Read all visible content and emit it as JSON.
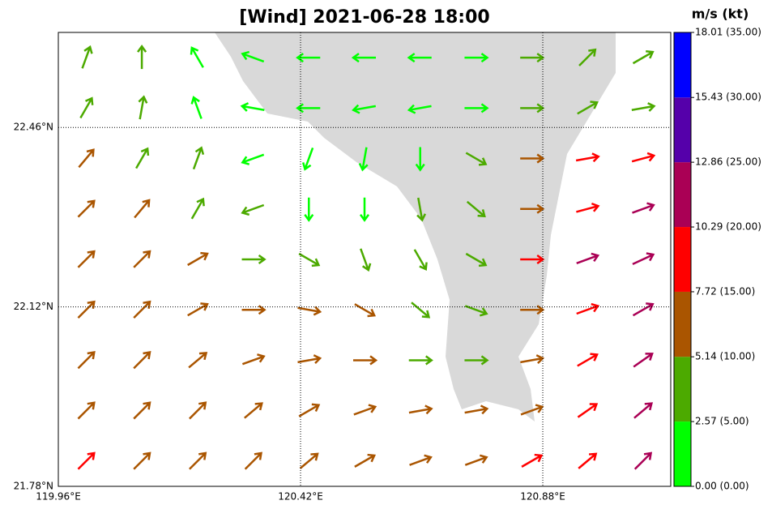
{
  "title": "[Wind] 2021-06-28 18:00",
  "xlim": [
    119.96,
    121.123
  ],
  "ylim": [
    21.78,
    22.64
  ],
  "xticks": [
    {
      "value": 119.96,
      "label": "119.96°E"
    },
    {
      "value": 120.42,
      "label": "120.42°E"
    },
    {
      "value": 120.88,
      "label": "120.88°E"
    }
  ],
  "yticks": [
    {
      "value": 21.78,
      "label": "21.78°N"
    },
    {
      "value": 22.12,
      "label": "22.12°N"
    },
    {
      "value": 22.46,
      "label": "22.46°N"
    }
  ],
  "colorbar": {
    "title": "m/s (kt)",
    "lim": [
      0,
      18.01
    ],
    "ticks": [
      {
        "value": 0,
        "label": "0.00  (0.00)"
      },
      {
        "value": 2.57,
        "label": "2.57  (5.00)"
      },
      {
        "value": 5.14,
        "label": "5.14  (10.00)"
      },
      {
        "value": 7.72,
        "label": "7.72  (15.00)"
      },
      {
        "value": 10.29,
        "label": "10.29  (20.00)"
      },
      {
        "value": 12.86,
        "label": "12.86  (25.00)"
      },
      {
        "value": 15.43,
        "label": "15.43  (30.00)"
      },
      {
        "value": 18.01,
        "label": "18.01  (35.00)"
      }
    ],
    "colors": [
      "#00ff00",
      "#4caa00",
      "#aa5500",
      "#ff0000",
      "#aa0055",
      "#5500aa",
      "#0000ff"
    ]
  },
  "wind": {
    "speed": [
      [
        3.5,
        3.5,
        2.5,
        2,
        1.5,
        1.5,
        1.5,
        2,
        4,
        3,
        3
      ],
      [
        4,
        3.5,
        2,
        1.5,
        1.5,
        1.5,
        1.5,
        2.5,
        4,
        3.5,
        3
      ],
      [
        5.5,
        5,
        4,
        2,
        1.5,
        2,
        2,
        4,
        6,
        8,
        8.5
      ],
      [
        6,
        5.5,
        4.5,
        3,
        2,
        2,
        3,
        4,
        7,
        10,
        12
      ],
      [
        6,
        6,
        5.5,
        4,
        3,
        4,
        4,
        4,
        8,
        11,
        12
      ],
      [
        6.5,
        6,
        6,
        6,
        6,
        6,
        5,
        4,
        7,
        10,
        11
      ],
      [
        6.5,
        6.5,
        6,
        6,
        6.5,
        6,
        5,
        4,
        6,
        9,
        11
      ],
      [
        7,
        7,
        6.5,
        6,
        6,
        6,
        6,
        6,
        7,
        9,
        12
      ],
      [
        8,
        7.5,
        7,
        7,
        7,
        6.5,
        6.5,
        7,
        8,
        9,
        12
      ]
    ],
    "direction": [
      [
        20,
        0,
        330,
        290,
        270,
        270,
        270,
        90,
        90,
        45,
        60
      ],
      [
        30,
        10,
        340,
        280,
        270,
        260,
        260,
        90,
        90,
        60,
        80
      ],
      [
        40,
        30,
        20,
        250,
        200,
        190,
        180,
        120,
        90,
        80,
        75
      ],
      [
        45,
        40,
        30,
        250,
        180,
        180,
        170,
        130,
        90,
        75,
        70
      ],
      [
        45,
        45,
        60,
        90,
        120,
        160,
        150,
        120,
        90,
        70,
        65
      ],
      [
        45,
        45,
        60,
        90,
        100,
        120,
        130,
        110,
        90,
        70,
        60
      ],
      [
        45,
        45,
        50,
        70,
        80,
        90,
        90,
        90,
        80,
        60,
        55
      ],
      [
        45,
        45,
        45,
        50,
        60,
        70,
        80,
        80,
        70,
        55,
        50
      ],
      [
        45,
        45,
        45,
        45,
        50,
        60,
        70,
        70,
        60,
        50,
        45
      ]
    ]
  }
}
